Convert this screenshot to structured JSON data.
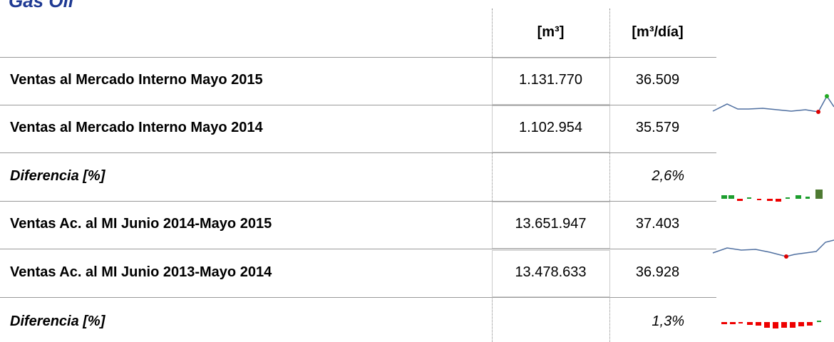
{
  "header": {
    "title": "Gas Oil"
  },
  "table": {
    "columns": [
      "[m³]",
      "[m³/día]"
    ],
    "rows": [
      {
        "label": "Ventas al Mercado Interno Mayo 2015",
        "values": [
          "1.131.770",
          "36.509"
        ]
      },
      {
        "label": "Ventas al Mercado Interno Mayo 2014",
        "values": [
          "1.102.954",
          "35.579"
        ]
      },
      {
        "label": "Diferencia [%]",
        "values": [
          "2,6%"
        ]
      },
      {
        "label": "Ventas Ac. al MI Junio 2014-Mayo 2015",
        "values": [
          "13.651.947",
          "37.403"
        ]
      },
      {
        "label": "Ventas Ac. al MI Junio 2013-Mayo 2014",
        "values": [
          "13.478.633",
          "36.928"
        ]
      },
      {
        "label": "Diferencia [%]",
        "values": [
          "1,3%"
        ]
      }
    ]
  }
}
